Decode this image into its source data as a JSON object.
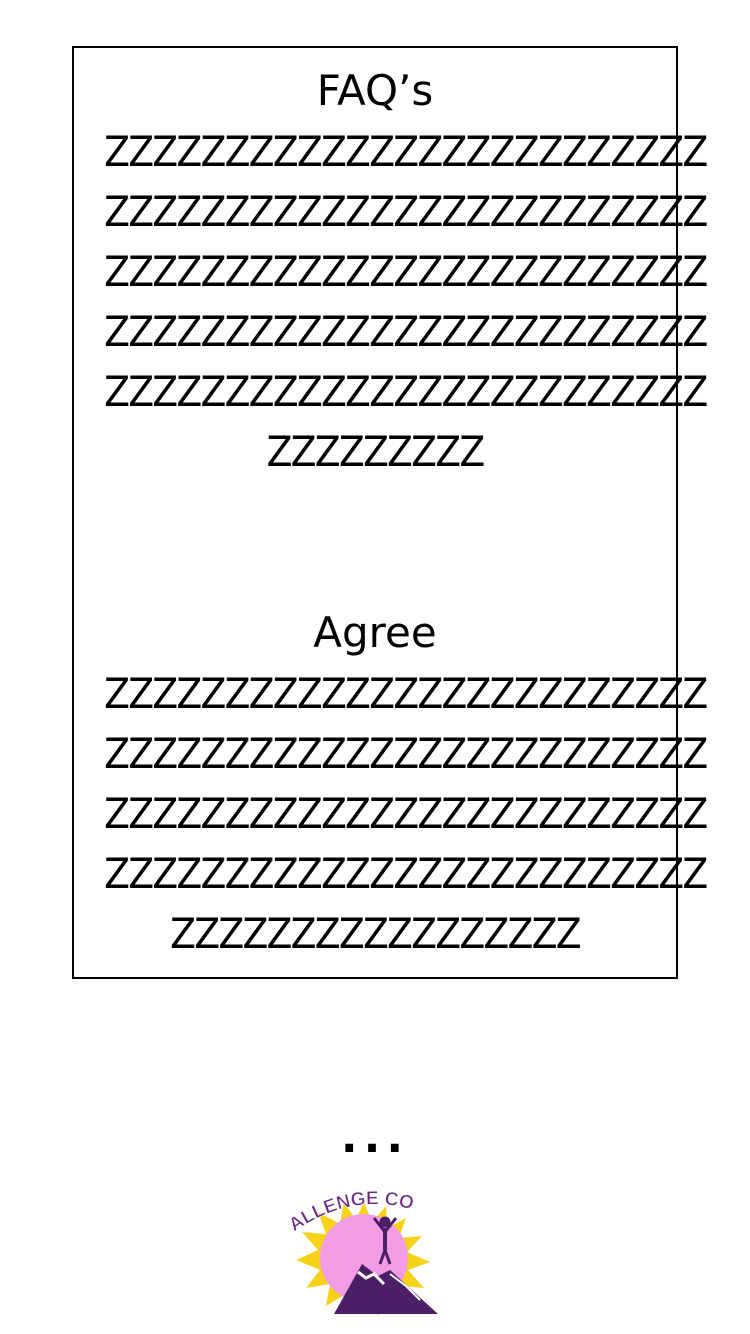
{
  "faq": {
    "title": "FAQ’s",
    "lines": [
      "ZZZZZZZZZZZZZZZZZZZZZZZZZ",
      "ZZZZZZZZZZZZZZZZZZZZZZZZZ",
      "ZZZZZZZZZZZZZZZZZZZZZZZZZ",
      "ZZZZZZZZZZZZZZZZZZZZZZZZZ",
      "ZZZZZZZZZZZZZZZZZZZZZZZZZ",
      "ZZZZZZZZZ"
    ]
  },
  "agree": {
    "title": "Agree",
    "lines": [
      "ZZZZZZZZZZZZZZZZZZZZZZZZZ",
      "ZZZZZZZZZZZZZZZZZZZZZZZZZ",
      "ZZZZZZZZZZZZZZZZZZZZZZZZZ",
      "ZZZZZZZZZZZZZZZZZZZZZZZZZ",
      "ZZZZZZZZZZZZZZZZZ"
    ]
  },
  "more_indicator": "...",
  "logo": {
    "text": "ALLENGE CO",
    "icon": "mountain-summit-logo-icon",
    "colors": {
      "burst": "#f7d21a",
      "circle": "#f29ce6",
      "brand": "#6b2a86",
      "mountain": "#4a1f66",
      "snow": "#ffffff"
    }
  }
}
